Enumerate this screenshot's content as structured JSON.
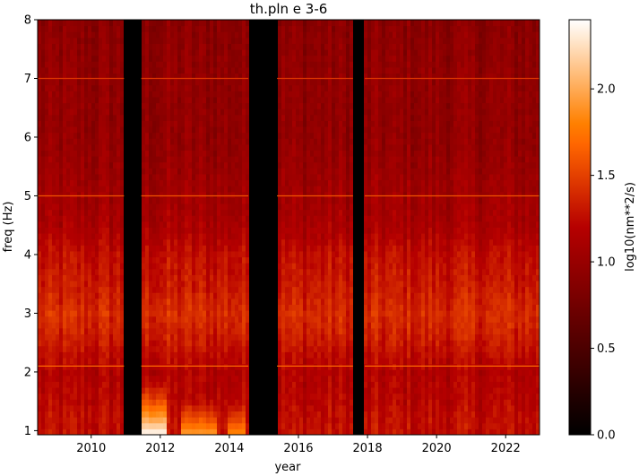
{
  "chart_data": {
    "type": "heatmap",
    "title": "th.pln e 3-6",
    "xlabel": "year",
    "ylabel": "freq (Hz)",
    "colorbar_label": "log10(nm**2/s)",
    "xlim": [
      2008.45,
      2022.98
    ],
    "ylim": [
      0.93,
      8.0
    ],
    "x_ticks": [
      2010,
      2012,
      2014,
      2016,
      2018,
      2020,
      2022
    ],
    "x_tick_labels": [
      "2010",
      "2012",
      "2014",
      "2016",
      "2018",
      "2020",
      "2022"
    ],
    "y_ticks": [
      1,
      2,
      3,
      4,
      5,
      6,
      7,
      8
    ],
    "y_tick_labels": [
      "1",
      "2",
      "3",
      "4",
      "5",
      "6",
      "7",
      "8"
    ],
    "colorbar_range": [
      0.0,
      2.4
    ],
    "colorbar_ticks": [
      0.0,
      0.5,
      1.0,
      1.5,
      2.0
    ],
    "colorbar_tick_labels": [
      "0.0",
      "0.5",
      "1.0",
      "1.5",
      "2.0"
    ],
    "colormap": "gist_heat",
    "no_data_gaps": [
      [
        2010.95,
        2011.45
      ],
      [
        2014.55,
        2015.38
      ],
      [
        2017.58,
        2017.92
      ]
    ],
    "freq_profile": [
      {
        "freq": 0.93,
        "value": 1.25
      },
      {
        "freq": 1.2,
        "value": 1.25
      },
      {
        "freq": 1.5,
        "value": 1.2
      },
      {
        "freq": 2.0,
        "value": 1.15
      },
      {
        "freq": 2.5,
        "value": 1.3
      },
      {
        "freq": 3.0,
        "value": 1.4
      },
      {
        "freq": 3.5,
        "value": 1.3
      },
      {
        "freq": 4.0,
        "value": 1.25
      },
      {
        "freq": 4.5,
        "value": 1.1
      },
      {
        "freq": 5.0,
        "value": 1.05
      },
      {
        "freq": 6.0,
        "value": 0.95
      },
      {
        "freq": 7.0,
        "value": 0.95
      },
      {
        "freq": 8.0,
        "value": 0.9
      }
    ],
    "hotspots": [
      {
        "year_start": 2011.45,
        "year_end": 2012.2,
        "freq_max": 2.0,
        "peak_value": 2.4
      },
      {
        "year_start": 2012.65,
        "year_end": 2013.6,
        "freq_max": 1.6,
        "peak_value": 1.95
      },
      {
        "year_start": 2013.9,
        "year_end": 2014.45,
        "freq_max": 1.6,
        "peak_value": 1.85
      }
    ],
    "line_features": [
      {
        "freq": 2.1,
        "value": 1.7
      },
      {
        "freq": 5.0,
        "value": 1.6
      },
      {
        "freq": 7.0,
        "value": 1.45
      }
    ],
    "colors": {
      "no_data": "#000000",
      "background": "#ffffff"
    }
  }
}
